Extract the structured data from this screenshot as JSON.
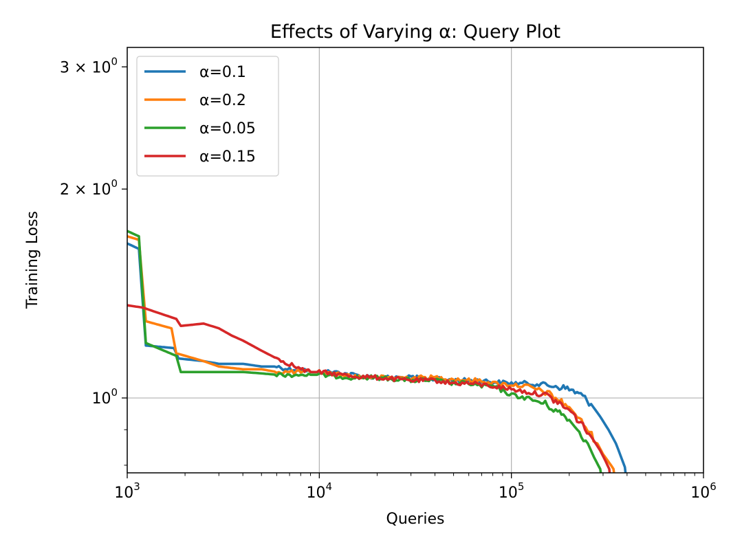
{
  "chart_data": {
    "type": "line",
    "title": "Effects of Varying α: Query Plot",
    "xlabel": "Queries",
    "ylabel": "Training Loss",
    "xscale": "log",
    "yscale": "log",
    "xlim": [
      1000,
      1000000
    ],
    "ylim": [
      0.78,
      3.2
    ],
    "grid": true,
    "legend_position": "top-left",
    "x_ticks": [
      {
        "value": 1000,
        "base": "10",
        "exp": "3"
      },
      {
        "value": 10000,
        "base": "10",
        "exp": "4"
      },
      {
        "value": 100000,
        "base": "10",
        "exp": "5"
      },
      {
        "value": 1000000,
        "base": "10",
        "exp": "6"
      }
    ],
    "y_ticks": [
      {
        "value": 1,
        "mantissa": "",
        "base": "10",
        "exp": "0"
      },
      {
        "value": 2,
        "mantissa": "2 × ",
        "base": "10",
        "exp": "0"
      },
      {
        "value": 3,
        "mantissa": "3 × ",
        "base": "10",
        "exp": "0"
      }
    ],
    "series": [
      {
        "name": "α=0.1",
        "color": "#1f77b4",
        "x": [
          1000,
          1150,
          1250,
          1750,
          1850,
          2500,
          3000,
          4000,
          5000,
          6000,
          7000,
          8000,
          9000,
          10000,
          12000,
          15000,
          20000,
          30000,
          40000,
          50000,
          60000,
          70000,
          80000,
          100000,
          120000,
          150000,
          170000,
          200000,
          230000,
          260000,
          290000,
          320000,
          350000,
          380000,
          400000
        ],
        "y": [
          1.67,
          1.64,
          1.19,
          1.18,
          1.14,
          1.13,
          1.12,
          1.12,
          1.11,
          1.11,
          1.1,
          1.1,
          1.09,
          1.09,
          1.09,
          1.08,
          1.07,
          1.07,
          1.065,
          1.06,
          1.06,
          1.06,
          1.055,
          1.05,
          1.05,
          1.045,
          1.04,
          1.03,
          1.01,
          0.98,
          0.94,
          0.9,
          0.86,
          0.81,
          0.78
        ]
      },
      {
        "name": "α=0.2",
        "color": "#ff7f0e",
        "x": [
          1000,
          1150,
          1250,
          1700,
          1800,
          2500,
          3000,
          4000,
          5000,
          6000,
          7000,
          8000,
          9000,
          10000,
          15000,
          20000,
          30000,
          40000,
          50000,
          60000,
          70000,
          80000,
          100000,
          120000,
          150000,
          170000,
          200000,
          220000,
          250000,
          280000,
          300000,
          330000,
          350000
        ],
        "y": [
          1.71,
          1.69,
          1.29,
          1.26,
          1.16,
          1.13,
          1.11,
          1.1,
          1.1,
          1.09,
          1.09,
          1.09,
          1.09,
          1.09,
          1.075,
          1.07,
          1.07,
          1.07,
          1.065,
          1.06,
          1.06,
          1.05,
          1.045,
          1.04,
          1.02,
          1.0,
          0.97,
          0.94,
          0.9,
          0.86,
          0.83,
          0.8,
          0.78
        ]
      },
      {
        "name": "α=0.05",
        "color": "#2ca02c",
        "x": [
          1000,
          1150,
          1250,
          1800,
          1900,
          2500,
          3000,
          4000,
          5000,
          6000,
          7000,
          8000,
          9000,
          10000,
          15000,
          20000,
          30000,
          40000,
          50000,
          60000,
          70000,
          80000,
          100000,
          120000,
          150000,
          170000,
          200000,
          220000,
          250000,
          270000,
          290000,
          300000
        ],
        "y": [
          1.74,
          1.71,
          1.2,
          1.15,
          1.09,
          1.09,
          1.09,
          1.09,
          1.085,
          1.08,
          1.08,
          1.08,
          1.08,
          1.08,
          1.07,
          1.07,
          1.06,
          1.06,
          1.05,
          1.05,
          1.04,
          1.04,
          1.01,
          1.0,
          0.98,
          0.96,
          0.93,
          0.9,
          0.86,
          0.82,
          0.79,
          0.78
        ]
      },
      {
        "name": "α=0.15",
        "color": "#d62728",
        "x": [
          1000,
          1200,
          1300,
          1800,
          1900,
          2500,
          3000,
          3500,
          4000,
          5000,
          6000,
          7000,
          8000,
          9000,
          10000,
          15000,
          20000,
          30000,
          40000,
          50000,
          60000,
          70000,
          80000,
          100000,
          120000,
          150000,
          170000,
          200000,
          230000,
          260000,
          290000,
          310000,
          330000
        ],
        "y": [
          1.36,
          1.35,
          1.34,
          1.3,
          1.27,
          1.28,
          1.26,
          1.23,
          1.21,
          1.17,
          1.14,
          1.12,
          1.1,
          1.09,
          1.09,
          1.075,
          1.07,
          1.06,
          1.06,
          1.05,
          1.05,
          1.045,
          1.04,
          1.03,
          1.02,
          1.01,
          0.99,
          0.96,
          0.92,
          0.88,
          0.84,
          0.81,
          0.78
        ]
      }
    ]
  }
}
